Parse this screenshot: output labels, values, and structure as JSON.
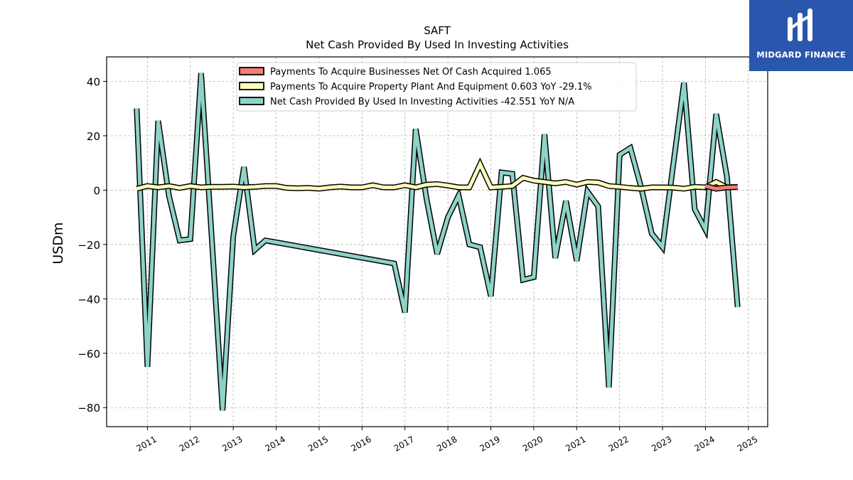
{
  "chart_data": {
    "type": "line",
    "title": "SAFT",
    "subtitle": "Net Cash Provided By Used In Investing Activities",
    "ylabel": "USDm",
    "xlabel": "",
    "ylim": [
      -87,
      49
    ],
    "xlim": [
      2010.05,
      2025.45
    ],
    "yticks": [
      -80,
      -60,
      -40,
      -20,
      0,
      20,
      40
    ],
    "ytick_labels": [
      "−80",
      "−60",
      "−40",
      "−20",
      "0",
      "20",
      "40"
    ],
    "xticks": [
      2011,
      2012,
      2013,
      2014,
      2015,
      2016,
      2017,
      2018,
      2019,
      2020,
      2021,
      2022,
      2023,
      2024,
      2025
    ],
    "xtick_labels": [
      "2011",
      "2012",
      "2013",
      "2014",
      "2015",
      "2016",
      "2017",
      "2018",
      "2019",
      "2020",
      "2021",
      "2022",
      "2023",
      "2024",
      "2025"
    ],
    "grid": true,
    "legend_position": "top-center",
    "series": [
      {
        "name": "Payments To Acquire Businesses Net Of Cash Acquired",
        "legend_value": "1.065",
        "color": "#f07f72",
        "points": [
          [
            2024.0,
            1.5
          ],
          [
            2024.25,
            0.5
          ],
          [
            2024.5,
            1.0
          ],
          [
            2024.75,
            1.1
          ]
        ]
      },
      {
        "name": "Payments To Acquire Property Plant And Equipment",
        "legend_value": "0.603 YoY -29.1%",
        "color": "#fdfcbb",
        "points": [
          [
            2010.75,
            0.5
          ],
          [
            2011.0,
            1.5
          ],
          [
            2011.25,
            1.0
          ],
          [
            2011.5,
            1.5
          ],
          [
            2011.75,
            0.8
          ],
          [
            2012.0,
            1.5
          ],
          [
            2012.25,
            1.0
          ],
          [
            2012.5,
            1.2
          ],
          [
            2012.75,
            1.2
          ],
          [
            2013.0,
            1.3
          ],
          [
            2013.25,
            1.0
          ],
          [
            2013.5,
            1.2
          ],
          [
            2013.75,
            1.5
          ],
          [
            2014.0,
            1.5
          ],
          [
            2014.25,
            0.8
          ],
          [
            2014.5,
            0.7
          ],
          [
            2014.75,
            0.8
          ],
          [
            2015.0,
            0.5
          ],
          [
            2015.25,
            1.0
          ],
          [
            2015.5,
            1.3
          ],
          [
            2015.75,
            1.0
          ],
          [
            2016.0,
            1.0
          ],
          [
            2016.25,
            1.8
          ],
          [
            2016.5,
            1.0
          ],
          [
            2016.75,
            1.0
          ],
          [
            2017.0,
            1.8
          ],
          [
            2017.25,
            1.0
          ],
          [
            2017.5,
            2.0
          ],
          [
            2017.75,
            2.2
          ],
          [
            2018.0,
            1.7
          ],
          [
            2018.25,
            1.0
          ],
          [
            2018.5,
            1.0
          ],
          [
            2018.75,
            9.5
          ],
          [
            2019.0,
            1.0
          ],
          [
            2019.25,
            1.2
          ],
          [
            2019.5,
            1.5
          ],
          [
            2019.75,
            4.5
          ],
          [
            2020.0,
            3.5
          ],
          [
            2020.25,
            3.0
          ],
          [
            2020.5,
            2.5
          ],
          [
            2020.75,
            3.0
          ],
          [
            2021.0,
            2.0
          ],
          [
            2021.25,
            3.0
          ],
          [
            2021.5,
            2.8
          ],
          [
            2021.75,
            1.5
          ],
          [
            2022.0,
            1.2
          ],
          [
            2022.25,
            0.8
          ],
          [
            2022.5,
            0.5
          ],
          [
            2022.75,
            1.0
          ],
          [
            2023.0,
            1.0
          ],
          [
            2023.25,
            0.9
          ],
          [
            2023.5,
            0.5
          ],
          [
            2023.75,
            1.2
          ],
          [
            2024.0,
            1.0
          ],
          [
            2024.25,
            3.0
          ],
          [
            2024.5,
            1.0
          ],
          [
            2024.75,
            1.2
          ]
        ]
      },
      {
        "name": "Net Cash Provided By Used In Investing Activities",
        "legend_value": "-42.551 YoY N/A",
        "color": "#8dd3c7",
        "points": [
          [
            2010.75,
            30.0
          ],
          [
            2011.0,
            -65.0
          ],
          [
            2011.25,
            25.5
          ],
          [
            2011.5,
            -2.0
          ],
          [
            2011.75,
            -18.5
          ],
          [
            2012.0,
            -18.0
          ],
          [
            2012.25,
            43.0
          ],
          [
            2012.5,
            -18.0
          ],
          [
            2012.75,
            -81.0
          ],
          [
            2013.0,
            -17.0
          ],
          [
            2013.25,
            8.5
          ],
          [
            2013.5,
            -22.0
          ],
          [
            2013.75,
            -18.5
          ],
          [
            2016.75,
            -27.0
          ],
          [
            2017.0,
            -45.0
          ],
          [
            2017.25,
            22.5
          ],
          [
            2017.5,
            -3.0
          ],
          [
            2017.75,
            -23.5
          ],
          [
            2018.0,
            -10.0
          ],
          [
            2018.25,
            -2.0
          ],
          [
            2018.5,
            -20.0
          ],
          [
            2018.75,
            -21.0
          ],
          [
            2019.0,
            -39.0
          ],
          [
            2019.25,
            6.5
          ],
          [
            2019.5,
            6.0
          ],
          [
            2019.75,
            -33.0
          ],
          [
            2020.0,
            -32.0
          ],
          [
            2020.25,
            20.5
          ],
          [
            2020.5,
            -25.0
          ],
          [
            2020.75,
            -4.0
          ],
          [
            2021.0,
            -26.0
          ],
          [
            2021.25,
            -0.5
          ],
          [
            2021.5,
            -6.0
          ],
          [
            2021.75,
            -72.5
          ],
          [
            2022.0,
            13.0
          ],
          [
            2022.25,
            15.5
          ],
          [
            2022.5,
            1.0
          ],
          [
            2022.75,
            -16.0
          ],
          [
            2023.0,
            -21.0
          ],
          [
            2023.5,
            39.5
          ],
          [
            2023.75,
            -7.0
          ],
          [
            2024.0,
            -14.5
          ],
          [
            2024.25,
            28.0
          ],
          [
            2024.5,
            5.0
          ],
          [
            2024.75,
            -43.0
          ]
        ]
      }
    ]
  },
  "branding": {
    "text": "MIDGARD FINANCE"
  }
}
